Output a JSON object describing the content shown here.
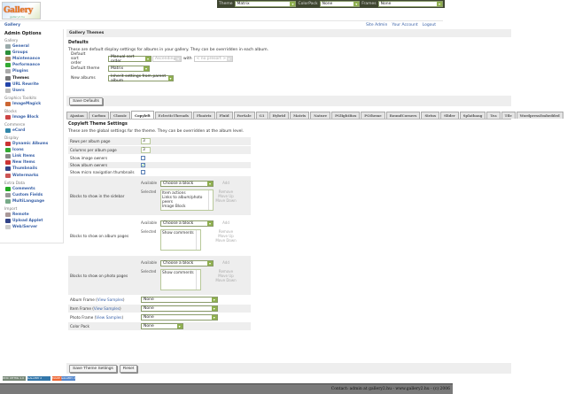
{
  "topbar": {
    "theme_label": "Theme",
    "theme_value": "Matrix",
    "colorpack_label": "ColorPack",
    "colorpack_value": "None",
    "frames_label": "Frames",
    "frames_value": "None"
  },
  "logo_text": "Gallery",
  "logo_sub": "gallery2.hu",
  "breadcrumb": "Gallery",
  "user_links": [
    "Site Admin",
    "Your Account",
    "Logout"
  ],
  "sidebar": {
    "title": "Admin Options",
    "groups": [
      {
        "label": "Gallery",
        "items": [
          {
            "label": "General",
            "icon": "general-icon",
            "color": "#9aa"
          },
          {
            "label": "Groups",
            "icon": "groups-icon",
            "color": "#2a8f3a"
          },
          {
            "label": "Maintenance",
            "icon": "maintenance-icon",
            "color": "#a86"
          },
          {
            "label": "Performance",
            "icon": "performance-icon",
            "color": "#3a3"
          },
          {
            "label": "Plugins",
            "icon": "plugins-icon",
            "color": "#aaa"
          },
          {
            "label": "Themes",
            "icon": "themes-icon",
            "color": "#777",
            "current": true
          },
          {
            "label": "URL Rewrite",
            "icon": "url-rewrite-icon",
            "color": "#24a"
          },
          {
            "label": "Users",
            "icon": "users-icon",
            "color": "#bbb"
          }
        ]
      },
      {
        "label": "Graphics Toolkits",
        "items": [
          {
            "label": "ImageMagick",
            "icon": "imagemagick-icon",
            "color": "#c63"
          }
        ]
      },
      {
        "label": "Blocks",
        "items": [
          {
            "label": "Image Block",
            "icon": "image-block-icon",
            "color": "#c44"
          }
        ]
      },
      {
        "label": "Commerce",
        "items": [
          {
            "label": "eCard",
            "icon": "ecard-icon",
            "color": "#38a"
          }
        ]
      },
      {
        "label": "Display",
        "items": [
          {
            "label": "Dynamic Albums",
            "icon": "dynamic-albums-icon",
            "color": "#c33"
          },
          {
            "label": "Icons",
            "icon": "icons-icon",
            "color": "#3a3"
          },
          {
            "label": "Link Items",
            "icon": "link-items-icon",
            "color": "#888"
          },
          {
            "label": "New Items",
            "icon": "new-items-icon",
            "color": "#c33"
          },
          {
            "label": "Thumbnails",
            "icon": "thumbnails-icon",
            "color": "#348"
          },
          {
            "label": "Watermarks",
            "icon": "watermarks-icon",
            "color": "#c55"
          }
        ]
      },
      {
        "label": "Extra Data",
        "items": [
          {
            "label": "Comments",
            "icon": "comments-icon",
            "color": "#2a2"
          },
          {
            "label": "Custom Fields",
            "icon": "custom-fields-icon",
            "color": "#999"
          },
          {
            "label": "MultiLanguage",
            "icon": "multilanguage-icon",
            "color": "#7a8"
          }
        ]
      },
      {
        "label": "Import",
        "items": [
          {
            "label": "Remote",
            "icon": "remote-icon",
            "color": "#a99"
          },
          {
            "label": "Upload Applet",
            "icon": "upload-applet-icon",
            "color": "#348"
          },
          {
            "label": "Web/Server",
            "icon": "web-server-icon",
            "color": "#ccc"
          }
        ]
      }
    ]
  },
  "main": {
    "title": "Gallery Themes",
    "defaults": {
      "title": "Defaults",
      "description": "These are default display settings for albums in your gallery. They can be overridden in each album.",
      "sort_label": "Default sort order",
      "sort_value": "Manual sort order",
      "sort_dir": "Ascending",
      "with_label": "with",
      "presort": "< no presort >",
      "theme_label": "Default theme",
      "theme_value": "Matrix",
      "new_label": "New albums",
      "new_value": "Inherit settings from parent album",
      "save_label": "Save Defaults"
    },
    "tabs": [
      "Ajaxian",
      "Carbon",
      "Classic",
      "Copyleft",
      "EclecticThreads",
      "Floatrix",
      "Fluid",
      "ForSale",
      "G1",
      "Hybrid",
      "Matrix",
      "Nature",
      "PGlightBox",
      "PGtheme",
      "RoundCorners",
      "Siriux",
      "Slider",
      "Splatbang",
      "Tea",
      "Tile",
      "WordpressEmbedded"
    ],
    "active_tab": "Copyleft",
    "theme_settings": {
      "title": "Copyleft Theme Settings",
      "description": "These are the global settings for the theme. They can be overridden at the album level.",
      "rows_label": "Rows per album page",
      "rows_value": "3",
      "cols_label": "Columns per album page",
      "cols_value": "3",
      "image_owners_label": "Show image owners",
      "image_owners": false,
      "album_owners_label": "Show album owners",
      "album_owners": true,
      "micro_label": "Show micro navigation thumbnails",
      "micro": false,
      "available_label": "Available",
      "selected_label": "Selected",
      "choose": "Choose a block",
      "add": "Add",
      "remove": "Remove",
      "move_up": "Move Up",
      "move_down": "Move Down",
      "sidebar_blocks": {
        "label": "Blocks to show in the sidebar",
        "selected": [
          "Item actions",
          "Links to album/photo peers",
          "Image Block"
        ]
      },
      "album_blocks": {
        "label": "Blocks to show on album pages",
        "selected": [
          "Show comments"
        ]
      },
      "photo_blocks": {
        "label": "Blocks to show on photo pages",
        "selected": [
          "Show comments"
        ]
      },
      "album_frame": {
        "label": "Album Frame (",
        "link": "View Samples",
        "close": ")",
        "value": "None"
      },
      "item_frame": {
        "label": "Item Frame (",
        "link": "View Samples",
        "close": ")",
        "value": "None"
      },
      "photo_frame": {
        "label": "Photo Frame (",
        "link": "View Samples",
        "close": ")",
        "value": "None"
      },
      "color_pack": {
        "label": "Color Pack",
        "value": "None"
      },
      "save_label": "Save Theme Settings",
      "reset_label": "Reset"
    }
  },
  "badges": [
    "W3C XHTML 1.0",
    "GALLERY 2",
    "MADE GALLERY 2"
  ],
  "footer": "Contact: admin at gallery2.hu - www.gallery2.hu - (c) 2006"
}
